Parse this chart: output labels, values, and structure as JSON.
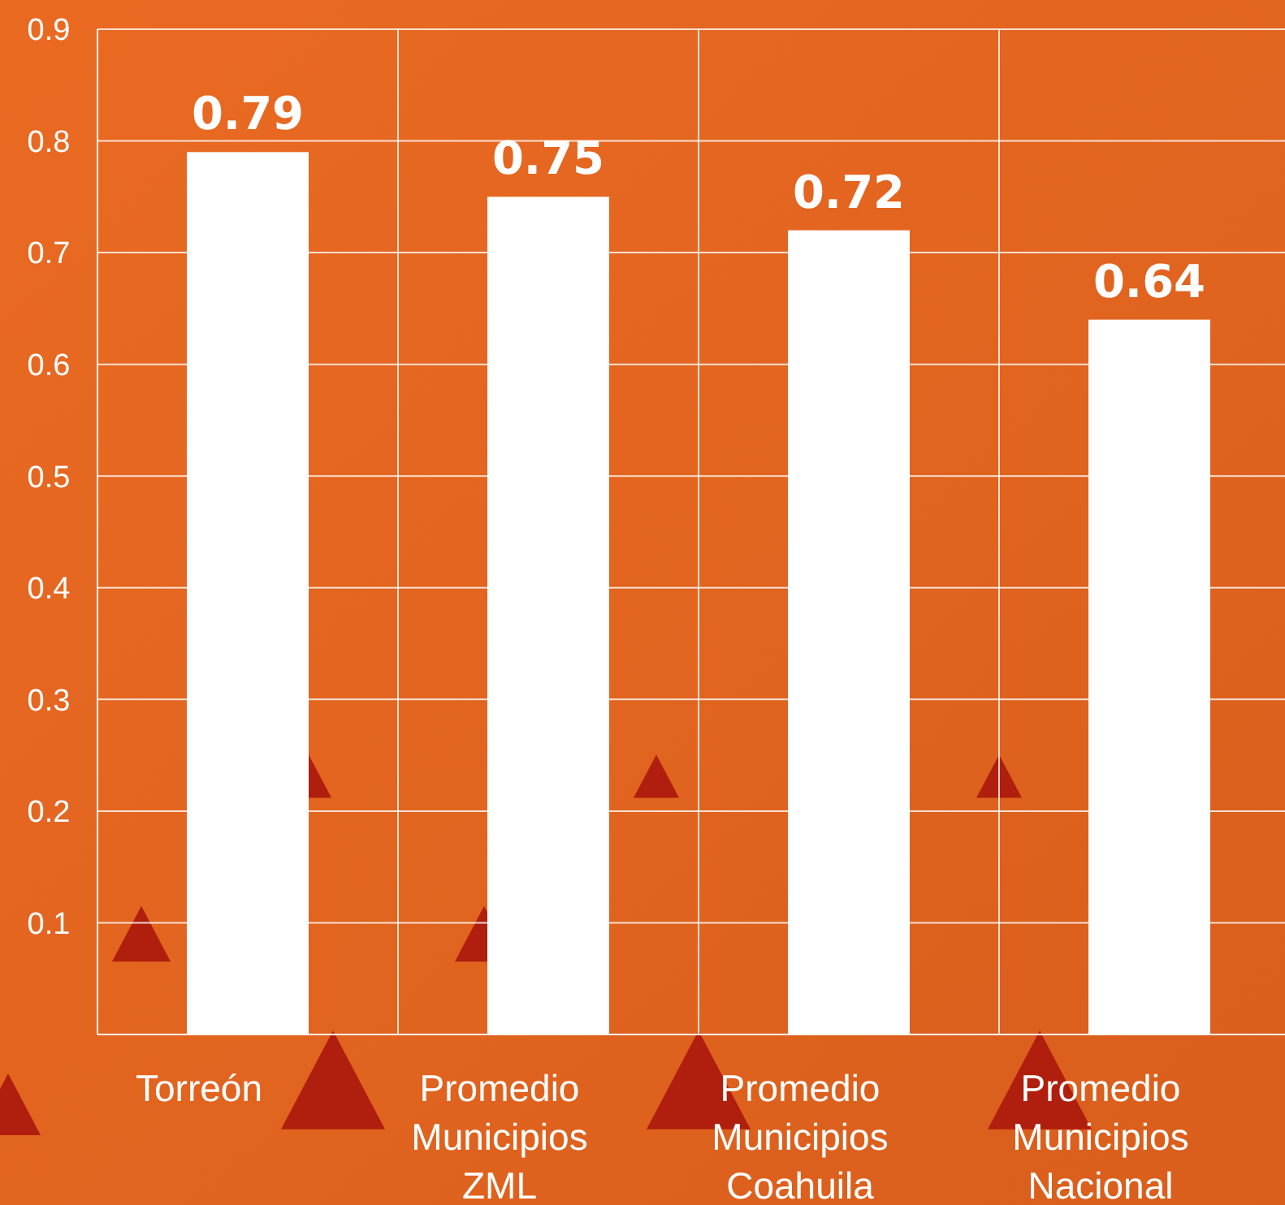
{
  "chart_data": {
    "type": "bar",
    "categories": [
      "Torreón",
      "Promedio Municipios ZML",
      "Promedio Municipios Coahuila",
      "Promedio Municipios Nacional"
    ],
    "values": [
      0.79,
      0.75,
      0.72,
      0.64
    ],
    "color": "#ffffff",
    "ylim": [
      0,
      0.9
    ],
    "yticks": [
      0.1,
      0.2,
      0.3,
      0.4,
      0.5,
      0.6,
      0.7,
      0.8,
      0.9
    ],
    "grid": true,
    "data_labels": true
  }
}
